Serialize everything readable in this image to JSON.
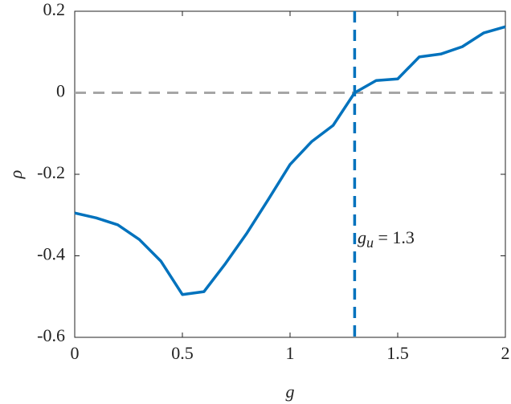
{
  "chart_data": {
    "type": "line",
    "xlabel": "g",
    "ylabel": "ρ",
    "x": [
      0,
      0.1,
      0.2,
      0.3,
      0.4,
      0.5,
      0.6,
      0.7,
      0.8,
      0.9,
      1.0,
      1.1,
      1.2,
      1.3,
      1.4,
      1.5,
      1.6,
      1.7,
      1.8,
      1.9,
      2.0
    ],
    "values": [
      -0.295,
      -0.307,
      -0.324,
      -0.36,
      -0.413,
      -0.495,
      -0.488,
      -0.419,
      -0.344,
      -0.261,
      -0.176,
      -0.12,
      -0.08,
      0,
      0.03,
      0.034,
      0.088,
      0.095,
      0.113,
      0.147,
      0.162
    ],
    "color": "#0072bd",
    "xlim": [
      0,
      2
    ],
    "ylim": [
      -0.6,
      0.2
    ],
    "xticks": [
      0,
      0.5,
      1,
      1.5,
      2
    ],
    "yticks": [
      -0.6,
      -0.4,
      -0.2,
      0,
      0.2
    ],
    "hline": {
      "value": 0,
      "color": "#a6a6a6"
    },
    "vline": {
      "value": 1.3,
      "color": "#0072bd"
    },
    "annotation": {
      "base": "g",
      "sub": "u",
      "rest": " = 1.3"
    }
  }
}
